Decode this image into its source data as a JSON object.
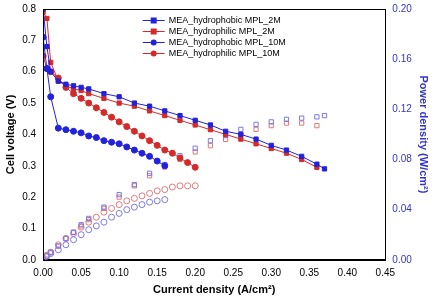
{
  "chart_data": {
    "type": "scatter",
    "x_label": "Current density (A/cm²)",
    "y_label": "Cell voltage (V)",
    "y2_label": "Power density (W/cm²)",
    "xlim": [
      0,
      0.45
    ],
    "xticks": [
      {
        "value": 0,
        "label": "0.00"
      },
      {
        "value": 0.05,
        "label": "0.05"
      },
      {
        "value": 0.1,
        "label": "0.10"
      },
      {
        "value": 0.15,
        "label": "0.15"
      },
      {
        "value": 0.2,
        "label": "0.20"
      },
      {
        "value": 0.25,
        "label": "0.25"
      },
      {
        "value": 0.3,
        "label": "0.30"
      },
      {
        "value": 0.35,
        "label": "0.35"
      },
      {
        "value": 0.4,
        "label": "0.40"
      },
      {
        "value": 0.45,
        "label": "0.45"
      }
    ],
    "ylim": [
      0,
      0.8
    ],
    "yticks": [
      {
        "value": 0,
        "label": "0.0"
      },
      0.1,
      0.2,
      0.3,
      0.4,
      0.5,
      0.6,
      0.7,
      0.8
    ],
    "y2lim": [
      0,
      0.2
    ],
    "y2ticks": [
      {
        "value": 0,
        "label": "0.00"
      },
      0.04,
      0.08,
      0.12,
      0.16,
      {
        "value": 0.2,
        "label": "0.20"
      }
    ],
    "grid": false,
    "legend": "upper center",
    "series": [
      {
        "name": "MEA_hydrophobic MPL_2M",
        "color": "#2222dd",
        "marker": "square",
        "line_style": "solid",
        "x": [
          0,
          0.005,
          0.01,
          0.02,
          0.03,
          0.04,
          0.05,
          0.06,
          0.08,
          0.1,
          0.12,
          0.14,
          0.16,
          0.18,
          0.2,
          0.22,
          0.24,
          0.26,
          0.28,
          0.3,
          0.32,
          0.34,
          0.36,
          0.37
        ],
        "values": [
          0.8,
          0.68,
          0.6,
          0.57,
          0.56,
          0.555,
          0.55,
          0.545,
          0.53,
          0.52,
          0.5,
          0.49,
          0.475,
          0.46,
          0.445,
          0.43,
          0.41,
          0.4,
          0.385,
          0.365,
          0.35,
          0.33,
          0.305,
          0.29
        ]
      },
      {
        "name": "MEA_hydrophilic MPL_2M",
        "color": "#d42a2a",
        "marker": "square",
        "line_style": "solid",
        "x": [
          0,
          0.005,
          0.01,
          0.02,
          0.03,
          0.04,
          0.05,
          0.06,
          0.08,
          0.1,
          0.12,
          0.14,
          0.16,
          0.18,
          0.2,
          0.22,
          0.24,
          0.26,
          0.28,
          0.3,
          0.32,
          0.34,
          0.36
        ],
        "values": [
          0.79,
          0.77,
          0.63,
          0.57,
          0.555,
          0.545,
          0.54,
          0.53,
          0.515,
          0.5,
          0.49,
          0.475,
          0.46,
          0.445,
          0.43,
          0.415,
          0.4,
          0.385,
          0.37,
          0.355,
          0.34,
          0.32,
          0.295
        ]
      },
      {
        "name": "MEA_hydrophobic MPL_10M",
        "color": "#2222dd",
        "marker": "circle",
        "line_style": "solid",
        "x": [
          0,
          0.005,
          0.01,
          0.02,
          0.03,
          0.04,
          0.05,
          0.06,
          0.07,
          0.08,
          0.09,
          0.1,
          0.11,
          0.12,
          0.13,
          0.14,
          0.15,
          0.16
        ],
        "values": [
          0.71,
          0.61,
          0.52,
          0.42,
          0.415,
          0.41,
          0.405,
          0.395,
          0.39,
          0.38,
          0.375,
          0.37,
          0.36,
          0.35,
          0.34,
          0.33,
          0.315,
          0.3
        ]
      },
      {
        "name": "MEA_hydrophilic MPL_10M",
        "color": "#d42a2a",
        "marker": "circle",
        "line_style": "solid",
        "x": [
          0,
          0.005,
          0.01,
          0.02,
          0.03,
          0.04,
          0.05,
          0.06,
          0.07,
          0.08,
          0.09,
          0.1,
          0.11,
          0.12,
          0.13,
          0.14,
          0.15,
          0.16,
          0.17,
          0.18,
          0.19,
          0.2
        ],
        "values": [
          0.65,
          0.61,
          0.6,
          0.58,
          0.55,
          0.53,
          0.515,
          0.5,
          0.485,
          0.47,
          0.455,
          0.44,
          0.425,
          0.41,
          0.395,
          0.38,
          0.365,
          0.35,
          0.34,
          0.325,
          0.31,
          0.295
        ]
      },
      {
        "color": "#7a7ae6",
        "marker": "open_square",
        "line_style": "none",
        "axis": "y2",
        "x": [
          0,
          0.005,
          0.01,
          0.02,
          0.03,
          0.04,
          0.05,
          0.06,
          0.08,
          0.1,
          0.12,
          0.14,
          0.16,
          0.18,
          0.2,
          0.22,
          0.24,
          0.26,
          0.28,
          0.3,
          0.32,
          0.34,
          0.36,
          0.37
        ],
        "values": [
          0,
          0.003,
          0.006,
          0.011,
          0.017,
          0.022,
          0.028,
          0.033,
          0.042,
          0.052,
          0.06,
          0.069,
          0.076,
          0.083,
          0.089,
          0.095,
          0.099,
          0.104,
          0.108,
          0.11,
          0.112,
          0.113,
          0.114,
          0.115
        ]
      },
      {
        "color": "#e07a7a",
        "marker": "open_square",
        "line_style": "none",
        "axis": "y2",
        "x": [
          0,
          0.005,
          0.01,
          0.02,
          0.03,
          0.04,
          0.05,
          0.06,
          0.08,
          0.1,
          0.12,
          0.14,
          0.16,
          0.18,
          0.2,
          0.22,
          0.24,
          0.26,
          0.28,
          0.3,
          0.32,
          0.34,
          0.36
        ],
        "values": [
          0,
          0.004,
          0.006,
          0.011,
          0.017,
          0.022,
          0.027,
          0.032,
          0.041,
          0.05,
          0.059,
          0.067,
          0.074,
          0.08,
          0.086,
          0.091,
          0.096,
          0.1,
          0.104,
          0.107,
          0.109,
          0.109,
          0.107
        ]
      },
      {
        "color": "#7a7ae6",
        "marker": "open_circle",
        "line_style": "none",
        "axis": "y2",
        "x": [
          0,
          0.005,
          0.01,
          0.02,
          0.03,
          0.04,
          0.05,
          0.06,
          0.07,
          0.08,
          0.09,
          0.1,
          0.11,
          0.12,
          0.13,
          0.14,
          0.15,
          0.16
        ],
        "values": [
          0,
          0.003,
          0.005,
          0.008,
          0.012,
          0.016,
          0.02,
          0.024,
          0.027,
          0.03,
          0.034,
          0.037,
          0.04,
          0.042,
          0.044,
          0.046,
          0.047,
          0.048
        ]
      },
      {
        "color": "#e07a7a",
        "marker": "open_circle",
        "line_style": "none",
        "axis": "y2",
        "x": [
          0,
          0.005,
          0.01,
          0.02,
          0.03,
          0.04,
          0.05,
          0.06,
          0.07,
          0.08,
          0.09,
          0.1,
          0.11,
          0.12,
          0.13,
          0.14,
          0.15,
          0.16,
          0.17,
          0.18,
          0.19,
          0.2
        ],
        "values": [
          0,
          0.003,
          0.006,
          0.012,
          0.017,
          0.021,
          0.026,
          0.03,
          0.034,
          0.038,
          0.041,
          0.044,
          0.047,
          0.049,
          0.051,
          0.053,
          0.055,
          0.056,
          0.058,
          0.059,
          0.059,
          0.059
        ]
      }
    ]
  }
}
